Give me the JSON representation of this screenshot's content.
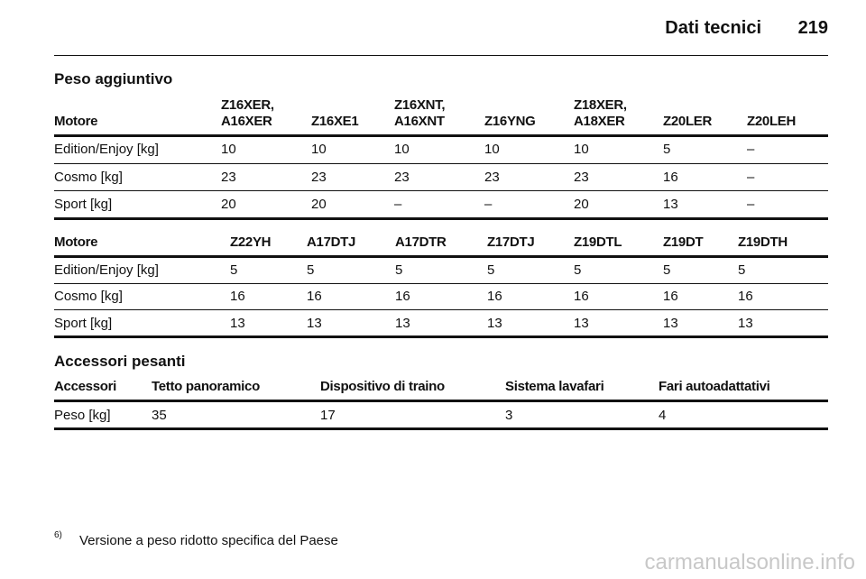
{
  "header": {
    "title": "Dati tecnici",
    "page": "219"
  },
  "sections": [
    {
      "title": "Peso aggiuntivo",
      "tables": [
        {
          "columns": [
            "Motore",
            "Z16XER,\nA16XER",
            "Z16XE1",
            "Z16XNT,\nA16XNT",
            "Z16YNG",
            "Z18XER,\nA18XER",
            "Z20LER",
            "Z20LEH"
          ],
          "rows": [
            [
              "Edition/Enjoy [kg]",
              "10",
              "10",
              "10",
              "10",
              "10",
              "5",
              "–"
            ],
            [
              "Cosmo [kg]",
              "23",
              "23",
              "23",
              "23",
              "23",
              "16",
              "–"
            ],
            [
              "Sport [kg]",
              "20",
              "20",
              "–",
              "–",
              "20",
              "13",
              "–"
            ]
          ]
        },
        {
          "columns": [
            "Motore",
            "Z22YH",
            "A17DTJ",
            "A17DTR",
            "Z17DTJ",
            "Z19DTL",
            "Z19DT",
            "Z19DTH"
          ],
          "rows": [
            [
              "Edition/Enjoy [kg]",
              "5",
              "5",
              "5",
              "5",
              "5",
              "5",
              "5"
            ],
            [
              "Cosmo [kg]",
              "16",
              "16",
              "16",
              "16",
              "16",
              "16",
              "16"
            ],
            [
              "Sport [kg]",
              "13",
              "13",
              "13",
              "13",
              "13",
              "13",
              "13"
            ]
          ]
        }
      ]
    },
    {
      "title": "Accessori pesanti",
      "tables": [
        {
          "columns": [
            "Accessori",
            "Tetto panoramico",
            "Dispositivo di traino",
            "Sistema lavafari",
            "Fari autoadattativi"
          ],
          "rows": [
            [
              "Peso [kg]",
              "35",
              "17",
              "3",
              "4"
            ]
          ]
        }
      ]
    }
  ],
  "footnote": {
    "mark": "6)",
    "text": "Versione a peso ridotto specifica del Paese"
  },
  "watermark": "carmanualsonline.info"
}
